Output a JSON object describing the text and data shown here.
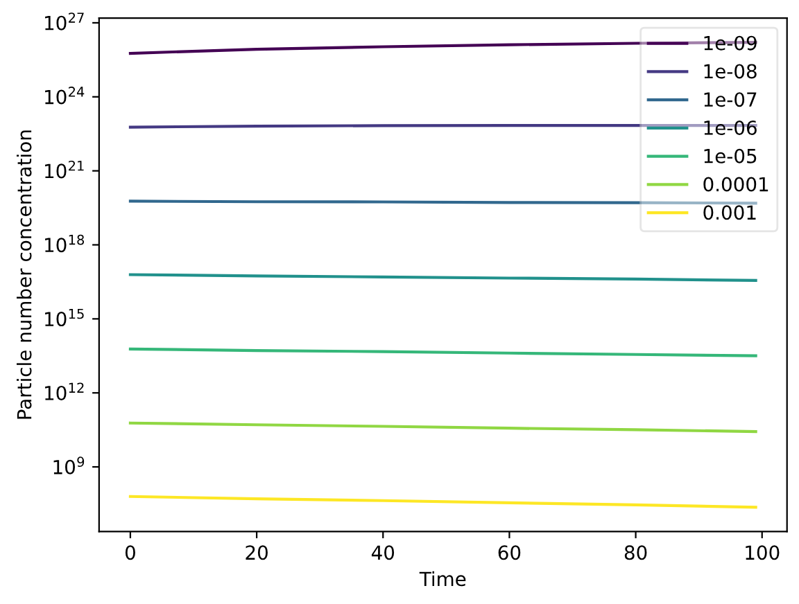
{
  "chart_data": {
    "type": "line",
    "xlabel": "Time",
    "ylabel": "Particle number concentration",
    "x": [
      0,
      20,
      40,
      60,
      80,
      99
    ],
    "series": [
      {
        "name": "1e-09",
        "color": "#440154",
        "values": [
          5.8e+25,
          8.5e+25,
          1.07e+26,
          1.29e+26,
          1.48e+26,
          1.62e+26
        ]
      },
      {
        "name": "1e-08",
        "color": "#443983",
        "values": [
          5.9e+22,
          6.5e+22,
          6.8e+22,
          6.9e+22,
          6.9e+22,
          6.9e+22
        ]
      },
      {
        "name": "1e-07",
        "color": "#31688e",
        "values": [
          5.9e+19,
          5.6e+19,
          5.5e+19,
          5.2e+19,
          5.1e+19,
          4.9e+19
        ]
      },
      {
        "name": "1e-06",
        "color": "#21918c",
        "values": [
          6.2e+16,
          5.5e+16,
          5e+16,
          4.5e+16,
          4.1e+16,
          3.6e+16
        ]
      },
      {
        "name": "1e-05",
        "color": "#35b779",
        "values": [
          60000000000000.0,
          52000000000000.0,
          47000000000000.0,
          41000000000000.0,
          36000000000000.0,
          32000000000000.0
        ]
      },
      {
        "name": "0.0001",
        "color": "#90d743",
        "values": [
          60000000000.0,
          51000000000.0,
          44000000000.0,
          37000000000.0,
          32000000000.0,
          27000000000.0
        ]
      },
      {
        "name": "0.001",
        "color": "#fde725",
        "values": [
          63000000.0,
          51000000.0,
          43000000.0,
          35000000.0,
          29000000.0,
          23000000.0
        ]
      }
    ],
    "log": "y",
    "xlim": [
      -4.95,
      103.95
    ],
    "xticks": [
      0,
      20,
      40,
      60,
      80,
      100
    ],
    "ylim": [
      2400000.0,
      1.55e+27
    ],
    "yticks": [
      {
        "value": 1000000000.0,
        "label": "10$^{9}$"
      },
      {
        "value": 1000000000000.0,
        "label": "10$^{12}$"
      },
      {
        "value": 1000000000000000.0,
        "label": "10$^{15}$"
      },
      {
        "value": 1e+18,
        "label": "10$^{18}$"
      },
      {
        "value": 1e+21,
        "label": "10$^{21}$"
      },
      {
        "value": 1e+24,
        "label": "10$^{24}$"
      },
      {
        "value": 1e+27,
        "label": "10$^{27}$"
      }
    ],
    "grid": false,
    "legend": "upper right",
    "marker": "none",
    "line_style": "solid"
  }
}
